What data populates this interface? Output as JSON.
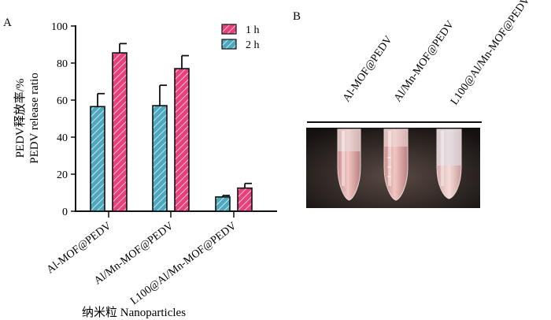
{
  "panels": {
    "a": "A",
    "b": "B"
  },
  "colors": {
    "series_1h": "#e8407a",
    "series_2h": "#4fa9be",
    "axis": "#111111"
  },
  "chart_data": {
    "type": "bar",
    "categories": [
      "Al-MOF@PEDV",
      "Al/Mn-MOF@PEDV",
      "L100@Al/Mn-MOF@PEDV"
    ],
    "series": [
      {
        "name": "2 h",
        "values": [
          56.5,
          57,
          7.7
        ],
        "errors": [
          7,
          11,
          0.8
        ],
        "color": "#4fa9be"
      },
      {
        "name": "1 h",
        "values": [
          85.5,
          77,
          12.5
        ],
        "errors": [
          5,
          7,
          2.5
        ],
        "color": "#e8407a"
      }
    ],
    "ylim": [
      0,
      100
    ],
    "yticks": [
      0,
      20,
      40,
      60,
      80,
      100
    ],
    "ylabel_cn": "PEDV释放率/%",
    "ylabel_en": "PEDV release ratio",
    "xlabel": "纳米粒 Nanoparticles",
    "legend": {
      "placement": "top-right",
      "entries": [
        "1 h",
        "2 h"
      ]
    },
    "hatch": "diagonal"
  },
  "photo": {
    "labels": [
      "Al-MOF@PEDV",
      "Al/Mn-MOF@PEDV",
      "L100@Al/Mn-MOF@PEDV"
    ]
  }
}
